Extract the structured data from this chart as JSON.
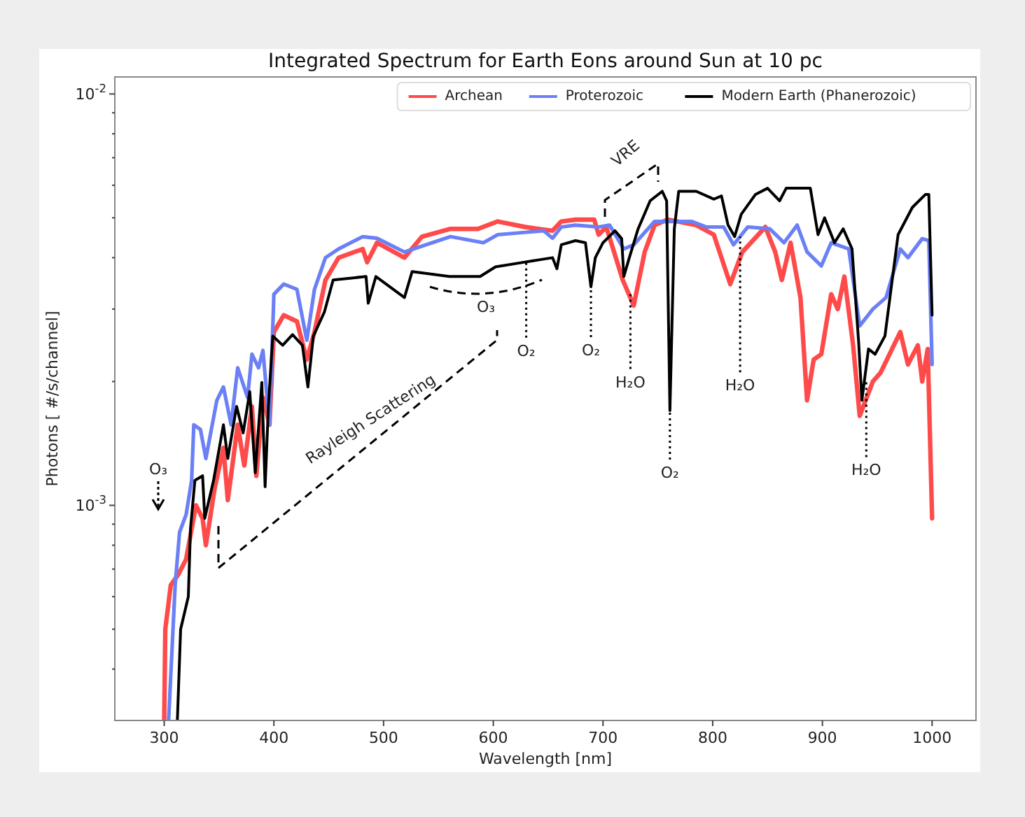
{
  "chart_data": {
    "type": "line",
    "title": "Integrated Spectrum for Earth Eons around Sun at 10 pc",
    "xlabel": "Wavelength [nm]",
    "ylabel": "Photons [ #/s/channel]",
    "log": "y",
    "grid": false,
    "legend": "top right",
    "marker": "none",
    "line_style": "solid",
    "xlim": [
      255,
      1040
    ],
    "xticks": [
      300,
      400,
      500,
      600,
      700,
      800,
      900,
      1000
    ],
    "ylim": [
      0.0003,
      0.011
    ],
    "yticks": [
      {
        "value": 0.0004,
        "label": null
      },
      {
        "value": 0.0005,
        "label": null
      },
      {
        "value": 0.0006,
        "label": null
      },
      {
        "value": 0.0007,
        "label": null
      },
      {
        "value": 0.0008,
        "label": null
      },
      {
        "value": 0.0009,
        "label": null
      },
      {
        "value": 0.001,
        "label": "10$^{-3}$"
      },
      {
        "value": 0.002,
        "label": null
      },
      {
        "value": 0.003,
        "label": null
      },
      {
        "value": 0.004,
        "label": null
      },
      {
        "value": 0.005,
        "label": null
      },
      {
        "value": 0.006,
        "label": null
      },
      {
        "value": 0.007,
        "label": null
      },
      {
        "value": 0.008,
        "label": null
      },
      {
        "value": 0.009,
        "label": null
      },
      {
        "value": 0.01,
        "label": "10$^{-2}$"
      }
    ],
    "series": [
      {
        "name": "Archean",
        "color": "#ff4a4a",
        "x": [
          300,
          301,
          306,
          313,
          320,
          329,
          335,
          338,
          346,
          354,
          358,
          367,
          373,
          380,
          384,
          390,
          396,
          400,
          409,
          421,
          430,
          437,
          447,
          459,
          481,
          485,
          494,
          519,
          535,
          561,
          586,
          604,
          629,
          654,
          662,
          675,
          692,
          696,
          703,
          718,
          728,
          738,
          747,
          759,
          785,
          801,
          816,
          827,
          848,
          857,
          863,
          871,
          880,
          886,
          892,
          899,
          908,
          914,
          920,
          928,
          934,
          946,
          953,
          971,
          978,
          987,
          991,
          996,
          1000
        ],
        "values": [
          0.0003,
          0.0005,
          0.00064,
          0.00068,
          0.00074,
          0.001,
          0.00093,
          0.0008,
          0.0011,
          0.00138,
          0.00103,
          0.00157,
          0.00125,
          0.00174,
          0.00118,
          0.00183,
          0.00157,
          0.00264,
          0.0029,
          0.0028,
          0.00226,
          0.00264,
          0.00353,
          0.004,
          0.0042,
          0.0039,
          0.00435,
          0.004,
          0.0045,
          0.0047,
          0.0047,
          0.0049,
          0.00475,
          0.00465,
          0.0049,
          0.00495,
          0.00495,
          0.00455,
          0.00475,
          0.00353,
          0.00306,
          0.00413,
          0.0048,
          0.00495,
          0.0048,
          0.00455,
          0.00345,
          0.00413,
          0.00475,
          0.00413,
          0.00353,
          0.00435,
          0.0032,
          0.0018,
          0.00226,
          0.00233,
          0.00326,
          0.003,
          0.0036,
          0.00245,
          0.00165,
          0.002,
          0.0021,
          0.00264,
          0.0022,
          0.00245,
          0.002,
          0.0024,
          0.00093
        ]
      },
      {
        "name": "Proterozoic",
        "color": "#6b80f5",
        "x": [
          304,
          310,
          314,
          320,
          325,
          327,
          333,
          338,
          348,
          354,
          361,
          367,
          376,
          380,
          386,
          390,
          396,
          400,
          409,
          421,
          430,
          437,
          447,
          459,
          481,
          494,
          519,
          561,
          591,
          604,
          646,
          654,
          662,
          675,
          696,
          706,
          719,
          728,
          747,
          781,
          794,
          810,
          819,
          832,
          852,
          865,
          877,
          886,
          899,
          908,
          924,
          934,
          946,
          958,
          971,
          978,
          991,
          997,
          1000
        ],
        "values": [
          0.0003,
          0.00064,
          0.00086,
          0.00095,
          0.00115,
          0.00157,
          0.00153,
          0.0013,
          0.0018,
          0.00194,
          0.00157,
          0.00216,
          0.00183,
          0.00233,
          0.00216,
          0.00238,
          0.00157,
          0.00326,
          0.00345,
          0.00335,
          0.00252,
          0.00335,
          0.004,
          0.0042,
          0.0045,
          0.00446,
          0.00413,
          0.0045,
          0.00435,
          0.00455,
          0.00465,
          0.00446,
          0.00475,
          0.0048,
          0.00475,
          0.0048,
          0.0042,
          0.0043,
          0.0049,
          0.0049,
          0.00475,
          0.00475,
          0.0043,
          0.00475,
          0.0047,
          0.00435,
          0.0048,
          0.00413,
          0.00382,
          0.00435,
          0.0042,
          0.00273,
          0.003,
          0.0032,
          0.0042,
          0.004,
          0.00445,
          0.0044,
          0.0022
        ]
      },
      {
        "name": "Modern Earth (Phanerozoic)",
        "color": "#000000",
        "x": [
          312,
          315,
          322,
          324,
          328,
          335,
          337,
          345,
          354,
          358,
          366,
          372,
          378,
          383,
          389,
          392,
          395,
          399,
          408,
          417,
          426,
          431,
          436,
          446,
          454,
          484,
          486,
          493,
          519,
          526,
          560,
          588,
          602,
          628,
          654,
          658,
          662,
          675,
          684,
          689,
          693,
          700,
          711,
          717,
          719,
          724,
          732,
          743,
          754,
          758,
          761,
          765,
          769,
          785,
          801,
          808,
          814,
          820,
          826,
          839,
          850,
          861,
          867,
          889,
          896,
          902,
          911,
          919,
          927,
          933,
          936,
          942,
          948,
          957,
          969,
          982,
          994,
          997,
          1000
        ],
        "values": [
          0.0003,
          0.0005,
          0.0006,
          0.00088,
          0.00115,
          0.00118,
          0.00093,
          0.00115,
          0.00157,
          0.0013,
          0.00174,
          0.0015,
          0.00189,
          0.0012,
          0.00199,
          0.00111,
          0.00174,
          0.00258,
          0.00245,
          0.0026,
          0.00245,
          0.00194,
          0.00258,
          0.00295,
          0.00353,
          0.0036,
          0.0031,
          0.0036,
          0.0032,
          0.0037,
          0.0036,
          0.0036,
          0.0038,
          0.0039,
          0.004,
          0.00376,
          0.0043,
          0.0044,
          0.00435,
          0.0034,
          0.004,
          0.00435,
          0.00465,
          0.00445,
          0.0036,
          0.004,
          0.0047,
          0.0055,
          0.0058,
          0.0055,
          0.0017,
          0.0047,
          0.0058,
          0.0058,
          0.00555,
          0.00565,
          0.0048,
          0.0045,
          0.0051,
          0.0057,
          0.0059,
          0.0055,
          0.0059,
          0.0059,
          0.00455,
          0.005,
          0.00435,
          0.0047,
          0.0042,
          0.0025,
          0.0018,
          0.0024,
          0.00233,
          0.00258,
          0.00455,
          0.0053,
          0.0057,
          0.0057,
          0.0029
        ]
      }
    ],
    "annotations": [
      "O₃",
      "Rayleigh Scattering",
      "O₃",
      {
        "text": "O₂",
        "x": 630,
        "y": 0.0039
      },
      {
        "text": "O₂",
        "x": 689,
        "y": 0.0034
      },
      {
        "text": "H₂O",
        "x": 725,
        "y": 0.0033
      },
      {
        "text": "O₂",
        "x": 761,
        "y": 0.0017
      },
      {
        "text": "H₂O",
        "x": 825,
        "y": 0.0045
      },
      {
        "text": "H₂O",
        "x": 940,
        "y": 0.002
      },
      "VRE"
    ]
  }
}
